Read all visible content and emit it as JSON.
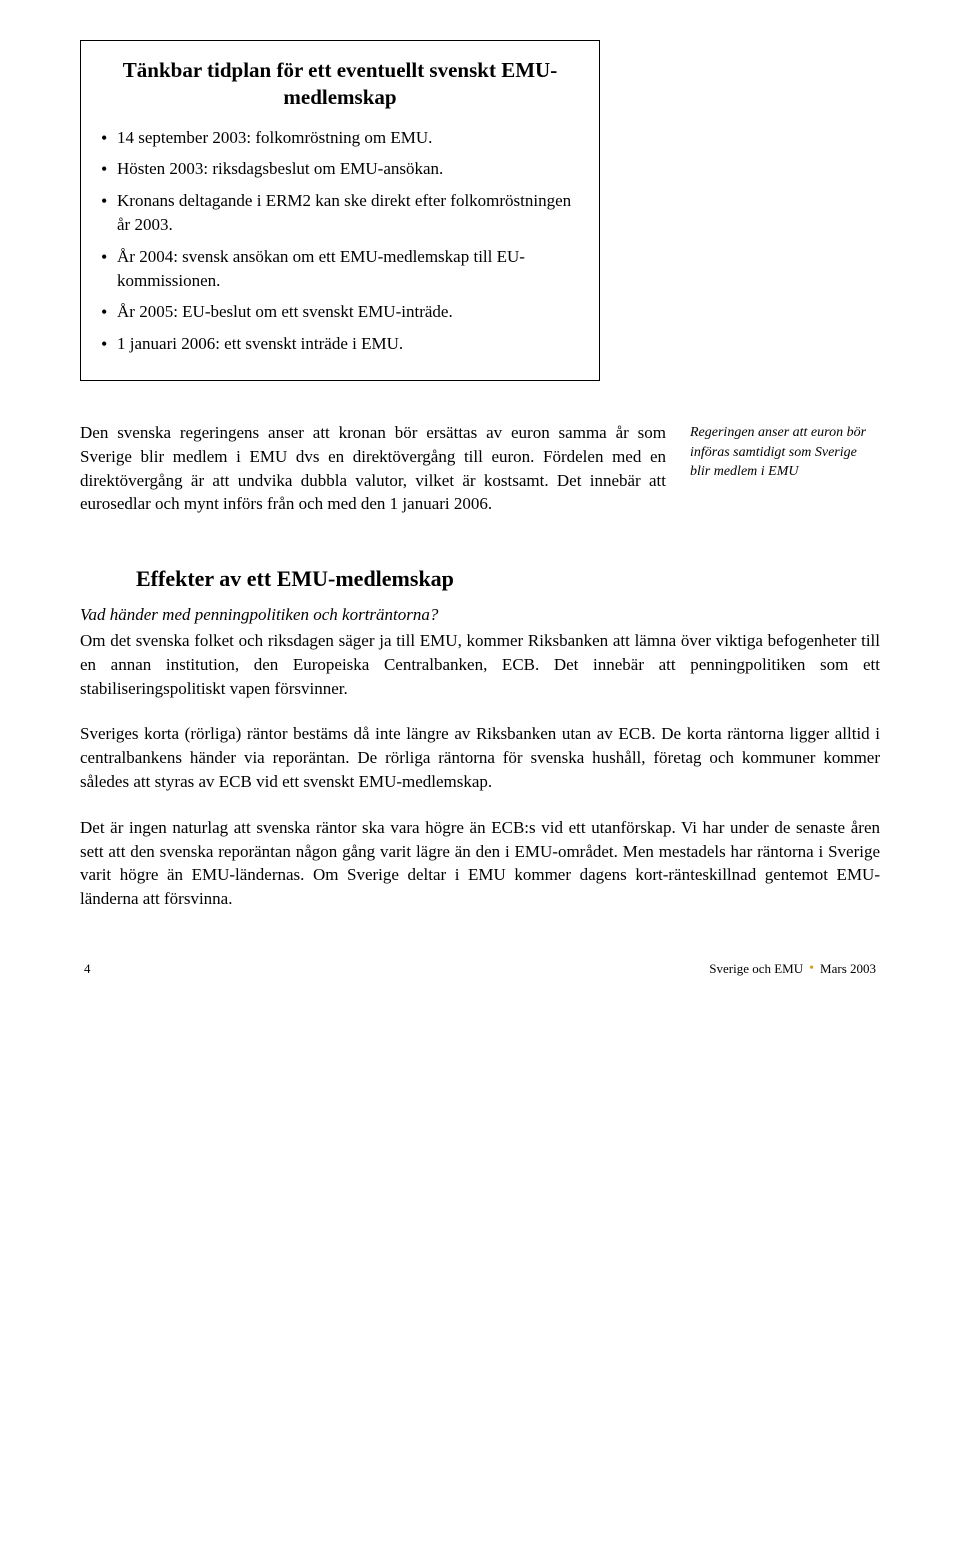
{
  "box": {
    "title": "Tänkbar tidplan för ett eventuellt svenskt EMU-medlemskap",
    "items": [
      "14 september 2003: folkomröstning om EMU.",
      "Hösten 2003: riksdagsbeslut om EMU-ansökan.",
      "Kronans deltagande i ERM2 kan ske direkt efter folkomröstningen år 2003.",
      "År 2004: svensk ansökan om ett EMU-medlemskap till EU-kommissionen.",
      "År 2005: EU-beslut om ett svenskt EMU-inträde.",
      "1 januari 2006: ett svenskt inträde i EMU."
    ]
  },
  "para1": "Den svenska regeringens anser att kronan bör ersättas av euron samma år som Sverige blir medlem i EMU dvs en direktövergång till euron. Fördelen med en direktövergång är att undvika dubbla valutor, vilket är kostsamt. Det innebär att eurosedlar och mynt införs från och med den 1 januari 2006.",
  "sidenote": "Regeringen anser att euron bör införas samtidigt som Sverige blir medlem i EMU",
  "section_title": "Effekter av ett EMU-medlemskap",
  "subq": "Vad händer med penningpolitiken och korträntorna?",
  "para2": "Om det svenska folket och riksdagen säger ja till EMU, kommer Riksbanken att lämna över viktiga befogenheter till en annan institution, den Europeiska Centralbanken, ECB. Det innebär att penningpolitiken som ett stabiliseringspolitiskt vapen försvinner.",
  "para3": "Sveriges korta (rörliga) räntor bestäms då inte längre av Riksbanken utan av ECB. De korta räntorna ligger alltid i centralbankens händer via reporäntan. De rörliga räntorna för svenska hushåll, företag och kommuner kommer således att styras av ECB vid ett svenskt EMU-medlemskap.",
  "para4": "Det är ingen naturlag att svenska räntor ska vara högre än ECB:s vid ett utanförskap. Vi har under de senaste åren sett att den svenska reporäntan någon gång varit lägre än den i EMU-området. Men mestadels har räntorna i Sverige varit högre än EMU-ländernas. Om Sverige deltar i EMU kommer dagens kort-ränteskillnad gentemot EMU-länderna att försvinna.",
  "footer": {
    "page": "4",
    "doc": "Sverige och EMU",
    "date": "Mars 2003"
  }
}
